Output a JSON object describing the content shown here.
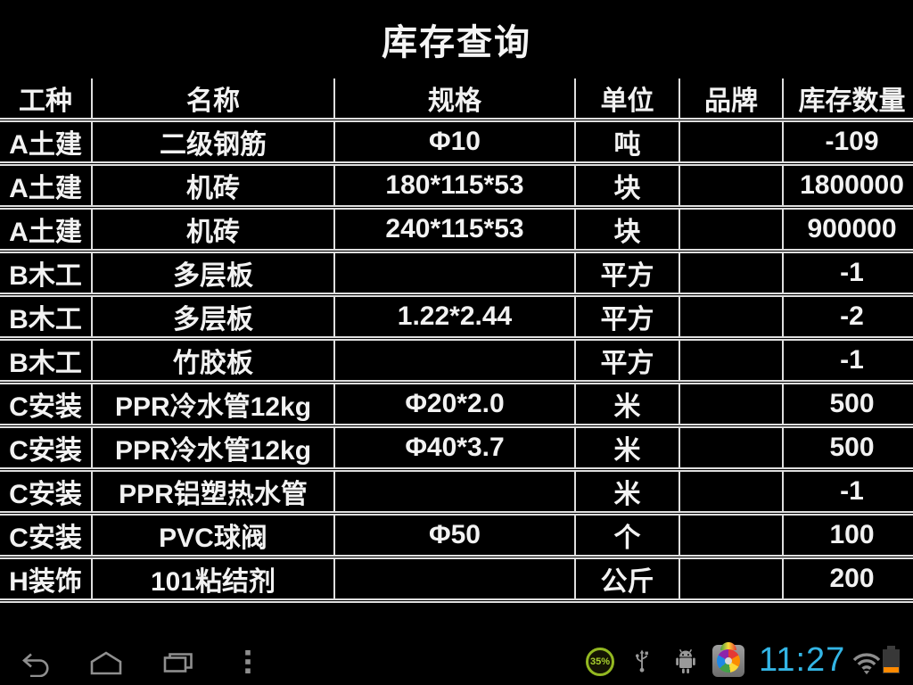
{
  "title": "库存查询",
  "table": {
    "headers": [
      "工种",
      "名称",
      "规格",
      "单位",
      "品牌",
      "库存数量"
    ],
    "rows": [
      [
        "A土建",
        "二级钢筋",
        "Φ10",
        "吨",
        "",
        "-109"
      ],
      [
        "A土建",
        "机砖",
        "180*115*53",
        "块",
        "",
        "1800000"
      ],
      [
        "A土建",
        "机砖",
        "240*115*53",
        "块",
        "",
        "900000"
      ],
      [
        "B木工",
        "多层板",
        "",
        "平方",
        "",
        "-1"
      ],
      [
        "B木工",
        "多层板",
        "1.22*2.44",
        "平方",
        "",
        "-2"
      ],
      [
        "B木工",
        "竹胶板",
        "",
        "平方",
        "",
        "-1"
      ],
      [
        "C安装",
        "PPR冷水管12kg",
        "Φ20*2.0",
        "米",
        "",
        "500"
      ],
      [
        "C安装",
        "PPR冷水管12kg",
        "Φ40*3.7",
        "米",
        "",
        "500"
      ],
      [
        "C安装",
        "PPR铝塑热水管",
        "",
        "米",
        "",
        "-1"
      ],
      [
        "C安装",
        "PVC球阀",
        "Φ50",
        "个",
        "",
        "100"
      ],
      [
        "H装饰",
        "101粘结剂",
        "",
        "公斤",
        "",
        "200"
      ]
    ]
  },
  "status": {
    "battery_saver": "35%",
    "time": "11:27"
  },
  "icons": {
    "nav": [
      "back-icon",
      "home-icon",
      "recents-icon",
      "menu-icon"
    ],
    "tray": [
      "battery-saver-badge-icon",
      "usb-icon",
      "adb-android-icon",
      "gallery-app-icon",
      "wifi-icon",
      "battery-icon"
    ]
  },
  "colors": {
    "time_accent": "#33b5e5",
    "battery_low": "#ff8a00",
    "badge_green": "#93b821",
    "icon_gray": "#8f8f8f",
    "grid_line": "#dfdfdf"
  }
}
